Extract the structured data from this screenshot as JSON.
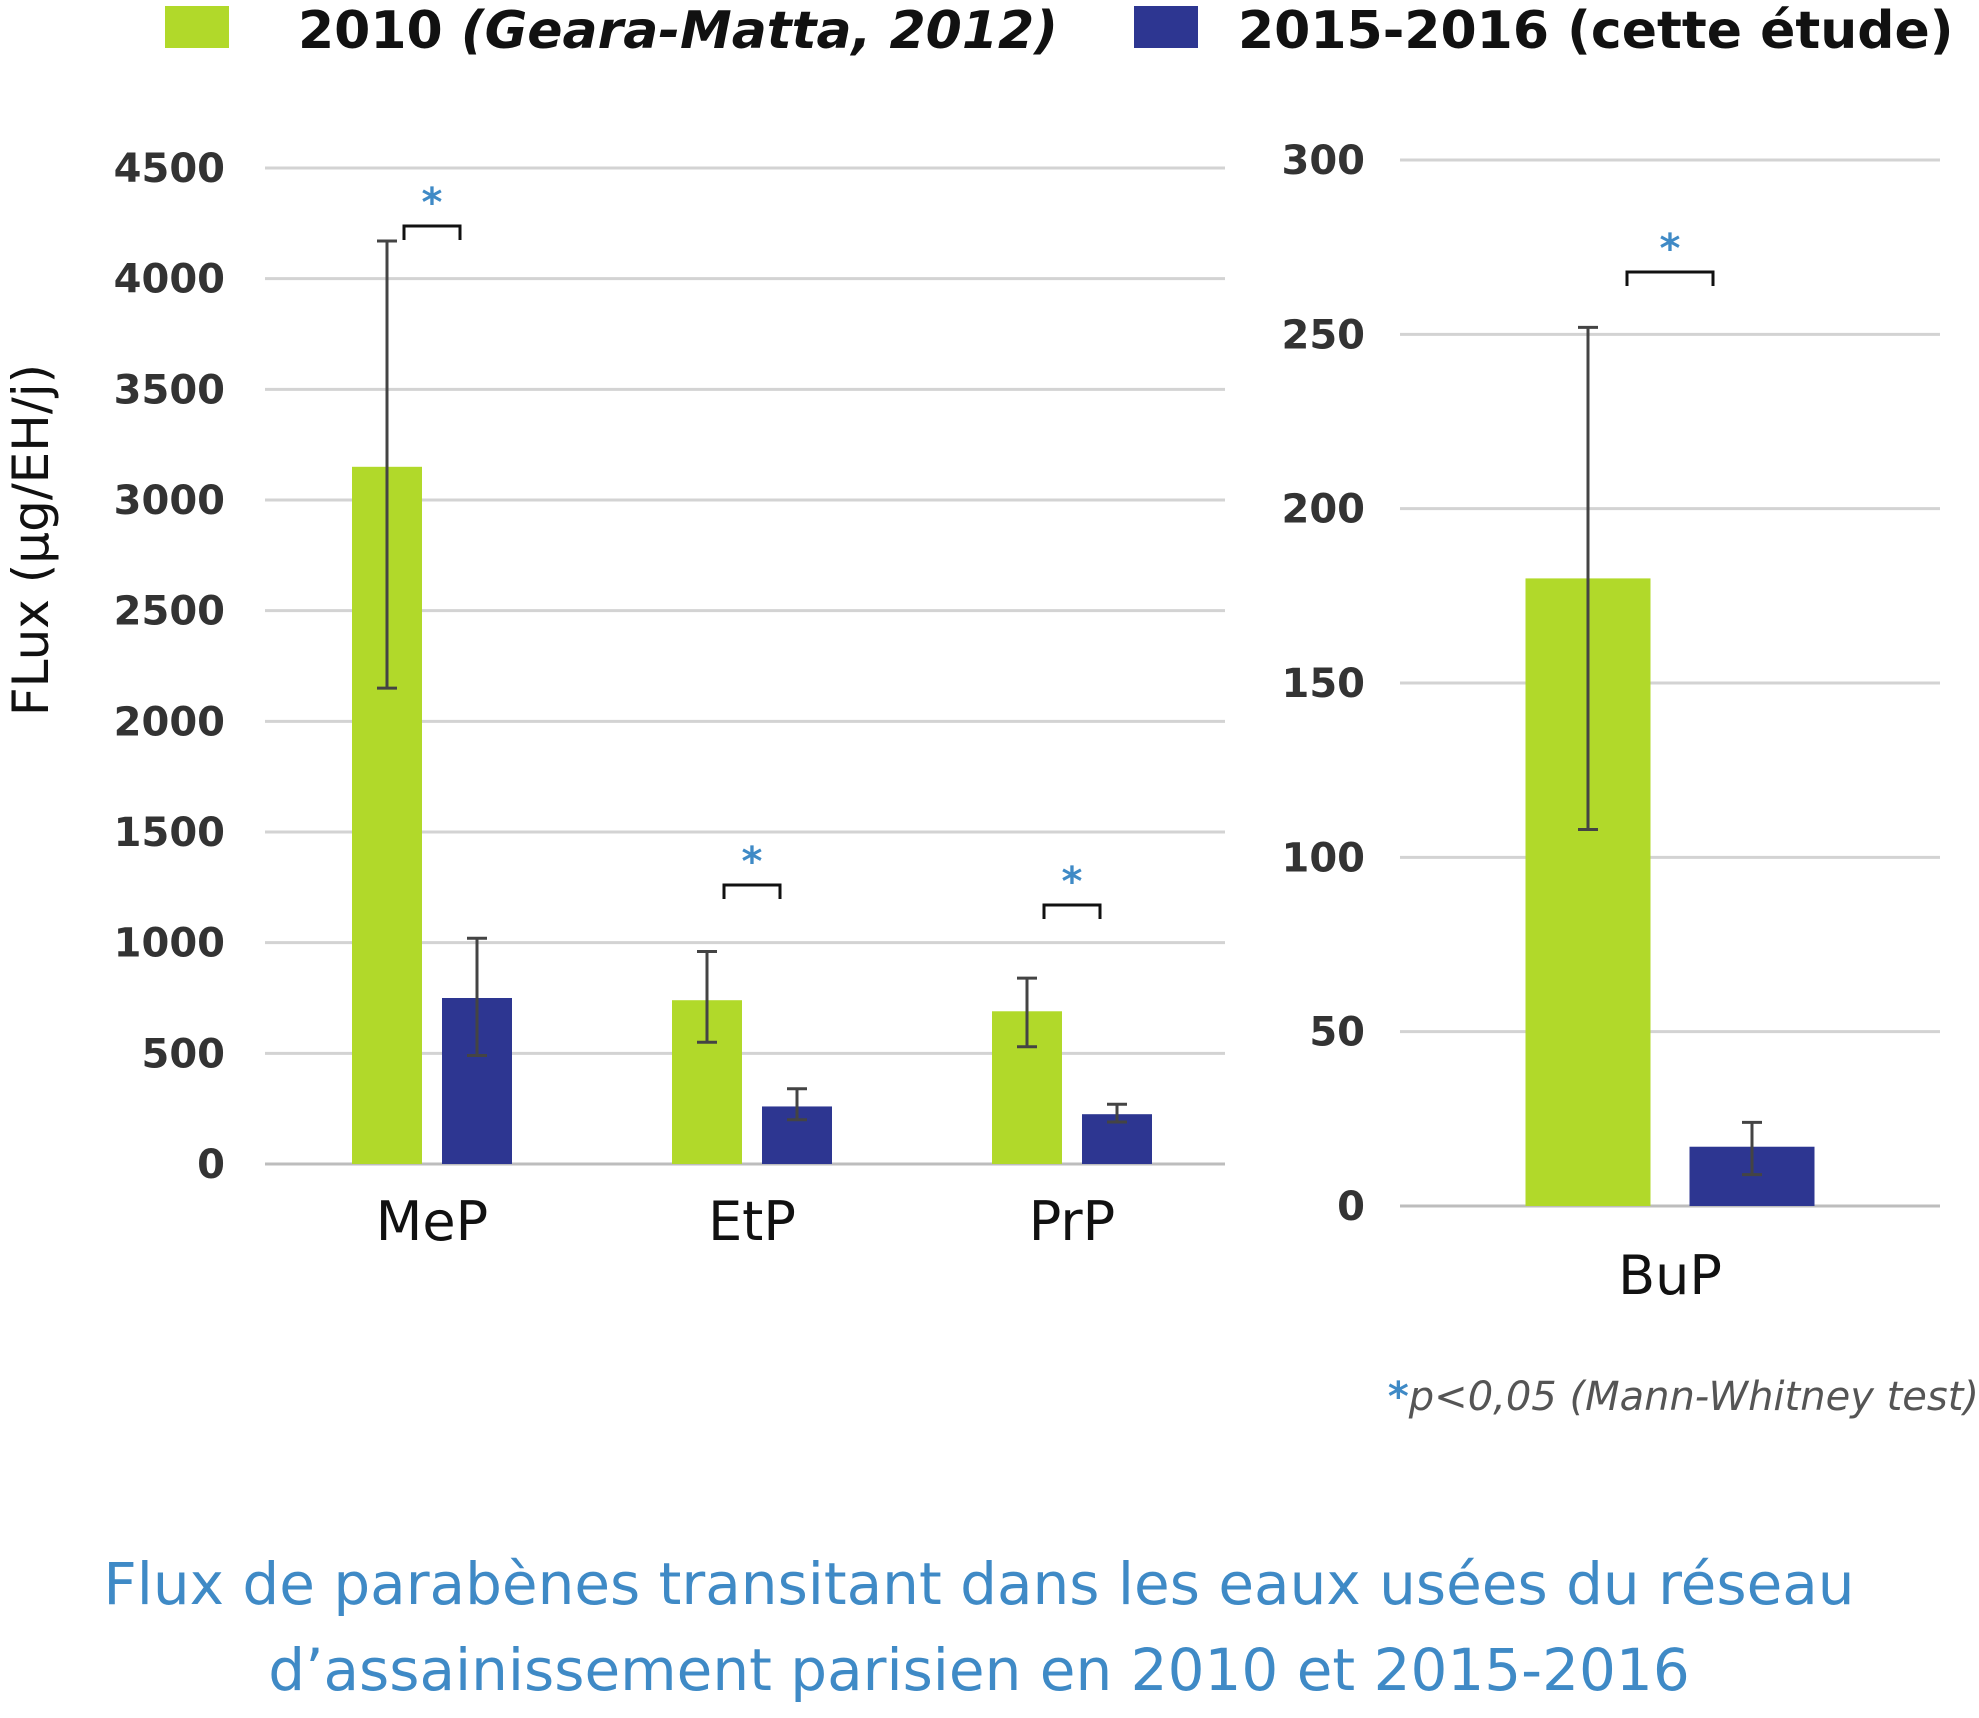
{
  "legend": [
    {
      "series": 0,
      "label_a": "2010 ",
      "label_b": "(Geara-Matta, 2012)"
    },
    {
      "series": 1,
      "label_a": "2015-2016 (cette étude)",
      "label_b": ""
    }
  ],
  "colors": {
    "series_2010": "#b1d92a",
    "series_2015": "#2d3691",
    "accent": "#3f8ac6",
    "grid": "#d3d3d3",
    "error": "#444444"
  },
  "chart_data": [
    {
      "type": "bar",
      "categories": [
        "MeP",
        "EtP",
        "PrP"
      ],
      "series": [
        {
          "name": "2010 (Geara-Matta, 2012)",
          "values": [
            3150,
            740,
            690
          ],
          "error_low": [
            2150,
            550,
            530
          ],
          "error_high": [
            4170,
            960,
            840
          ]
        },
        {
          "name": "2015-2016 (cette étude)",
          "values": [
            750,
            260,
            225
          ],
          "error_low": [
            490,
            200,
            190
          ],
          "error_high": [
            1020,
            340,
            270
          ]
        }
      ],
      "ylabel": "FLux (µg/EH/j)",
      "ylim": [
        0,
        4500
      ],
      "yticks": [
        0,
        500,
        1000,
        1500,
        2000,
        2500,
        3000,
        3500,
        4000,
        4500
      ],
      "ytick_labels": [
        "0",
        "500",
        "1000",
        "1500",
        "2000",
        "2500",
        "3000",
        "3500",
        "4000",
        "4500"
      ],
      "significance": [
        "*",
        "*",
        "*"
      ],
      "grid": true
    },
    {
      "type": "bar",
      "categories": [
        "BuP"
      ],
      "series": [
        {
          "name": "2010 (Geara-Matta, 2012)",
          "values": [
            180
          ],
          "error_low": [
            108
          ],
          "error_high": [
            252
          ]
        },
        {
          "name": "2015-2016 (cette étude)",
          "values": [
            17
          ],
          "error_low": [
            9
          ],
          "error_high": [
            24
          ]
        }
      ],
      "ylim": [
        0,
        300
      ],
      "yticks": [
        0,
        50,
        100,
        150,
        200,
        250,
        300
      ],
      "ytick_labels": [
        "0",
        "50",
        "100",
        "150",
        "200",
        "250",
        "300"
      ],
      "significance": [
        "*"
      ],
      "grid": true
    }
  ],
  "footnote": {
    "star": "*",
    "text": "p<0,05 (Mann-Whitney test)"
  },
  "caption": {
    "line1": "Flux de parabènes transitant dans les eaux usées du réseau",
    "line2": "d’assainissement parisien en 2010 et 2015-2016"
  }
}
